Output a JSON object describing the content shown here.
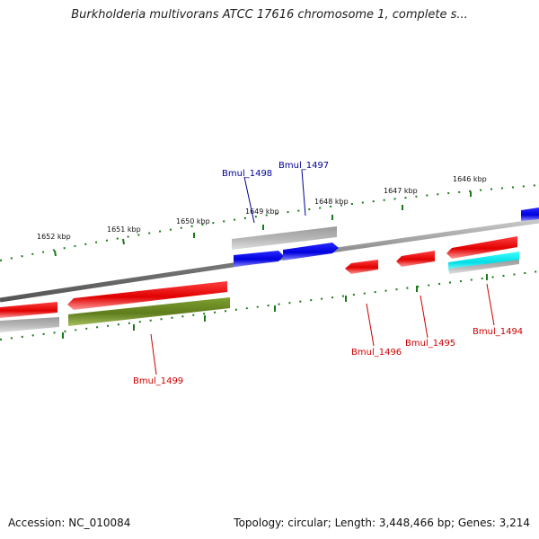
{
  "title": "Burkholderia multivorans ATCC 17616 chromosome 1, complete s...",
  "footer": {
    "accession_label": "Accession:",
    "accession": "NC_010084",
    "topology_label": "Topology:",
    "topology": "circular",
    "length_label": "Length:",
    "length": "3,448,466 bp",
    "genes_label": "Genes:",
    "genes": "3,214"
  },
  "ruler_labels": [
    "1646 kbp",
    "1647 kbp",
    "1648 kbp",
    "1649 kbp",
    "1650 kbp",
    "1651 kbp",
    "1652 kbp"
  ],
  "gene_labels": [
    {
      "name": "Bmul_1494",
      "color": "#cc0000"
    },
    {
      "name": "Bmul_1495",
      "color": "#cc0000"
    },
    {
      "name": "Bmul_1496",
      "color": "#cc0000"
    },
    {
      "name": "Bmul_1497",
      "color": "#000099"
    },
    {
      "name": "Bmul_1498",
      "color": "#000099"
    },
    {
      "name": "Bmul_1499",
      "color": "#cc0000"
    }
  ],
  "colors": {
    "backbone": "#808080",
    "ruler_tick": "#1a7a1a",
    "cds_forward": "#ee0000",
    "cds_reverse": "#0000ee",
    "gene_grey": "#b8b8b8",
    "gene_olive": "#6b8e23",
    "gene_cyan": "#00e5ee"
  }
}
